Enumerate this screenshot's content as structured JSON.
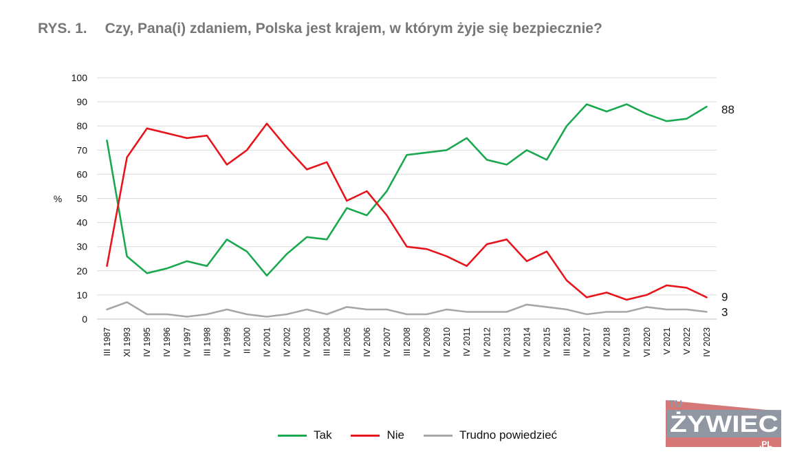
{
  "header": {
    "figure_label": "RYS. 1.",
    "title": "Czy, Pana(i) zdaniem, Polska jest krajem, w którym żyje się bezpiecznie?"
  },
  "chart_data": {
    "type": "line",
    "title": "Czy, Pana(i) zdaniem, Polska jest krajem, w którym żyje się bezpiecznie?",
    "ylabel": "%",
    "xlabel": "",
    "ylim": [
      0,
      100
    ],
    "yticks": [
      0,
      10,
      20,
      30,
      40,
      50,
      60,
      70,
      80,
      90,
      100
    ],
    "grid": true,
    "legend_position": "bottom",
    "categories": [
      "III 1987",
      "XI 1993",
      "IV 1995",
      "IV 1996",
      "IV 1997",
      "III 1998",
      "IV 1999",
      "II 2000",
      "IV 2001",
      "IV 2002",
      "IV 2003",
      "III 2004",
      "III 2005",
      "IV 2006",
      "IV 2007",
      "III 2008",
      "IV 2009",
      "IV 2010",
      "IV 2011",
      "IV 2012",
      "IV 2013",
      "IV 2014",
      "IV 2015",
      "III 2016",
      "IV 2017",
      "IV 2018",
      "IV 2019",
      "VI 2020",
      "V 2021",
      "V 2022",
      "IV 2023"
    ],
    "series": [
      {
        "name": "Tak",
        "color": "#1aa84f",
        "end_label": "88",
        "values": [
          74,
          26,
          19,
          21,
          24,
          22,
          33,
          28,
          18,
          27,
          34,
          33,
          46,
          43,
          53,
          68,
          69,
          70,
          75,
          66,
          64,
          70,
          66,
          80,
          89,
          86,
          89,
          85,
          82,
          83,
          88
        ]
      },
      {
        "name": "Nie",
        "color": "#e8141b",
        "end_label": "9",
        "values": [
          22,
          67,
          79,
          77,
          75,
          76,
          64,
          70,
          81,
          71,
          62,
          65,
          49,
          53,
          43,
          30,
          29,
          26,
          22,
          31,
          33,
          24,
          28,
          16,
          9,
          11,
          8,
          10,
          14,
          13,
          9
        ]
      },
      {
        "name": "Trudno powiedzieć",
        "color": "#a6a6a6",
        "end_label": "3",
        "values": [
          4,
          7,
          2,
          2,
          1,
          2,
          4,
          2,
          1,
          2,
          4,
          2,
          5,
          4,
          4,
          2,
          2,
          4,
          3,
          3,
          3,
          6,
          5,
          4,
          2,
          3,
          3,
          5,
          4,
          4,
          3
        ]
      }
    ]
  },
  "logo": {
    "top_text": "TU",
    "main_text": "ŻYWIEC",
    "suffix": ".PL",
    "colors": {
      "slate": "#8a9aa6",
      "red": "#c84a4a",
      "dark_red": "#9e2a2a"
    }
  }
}
